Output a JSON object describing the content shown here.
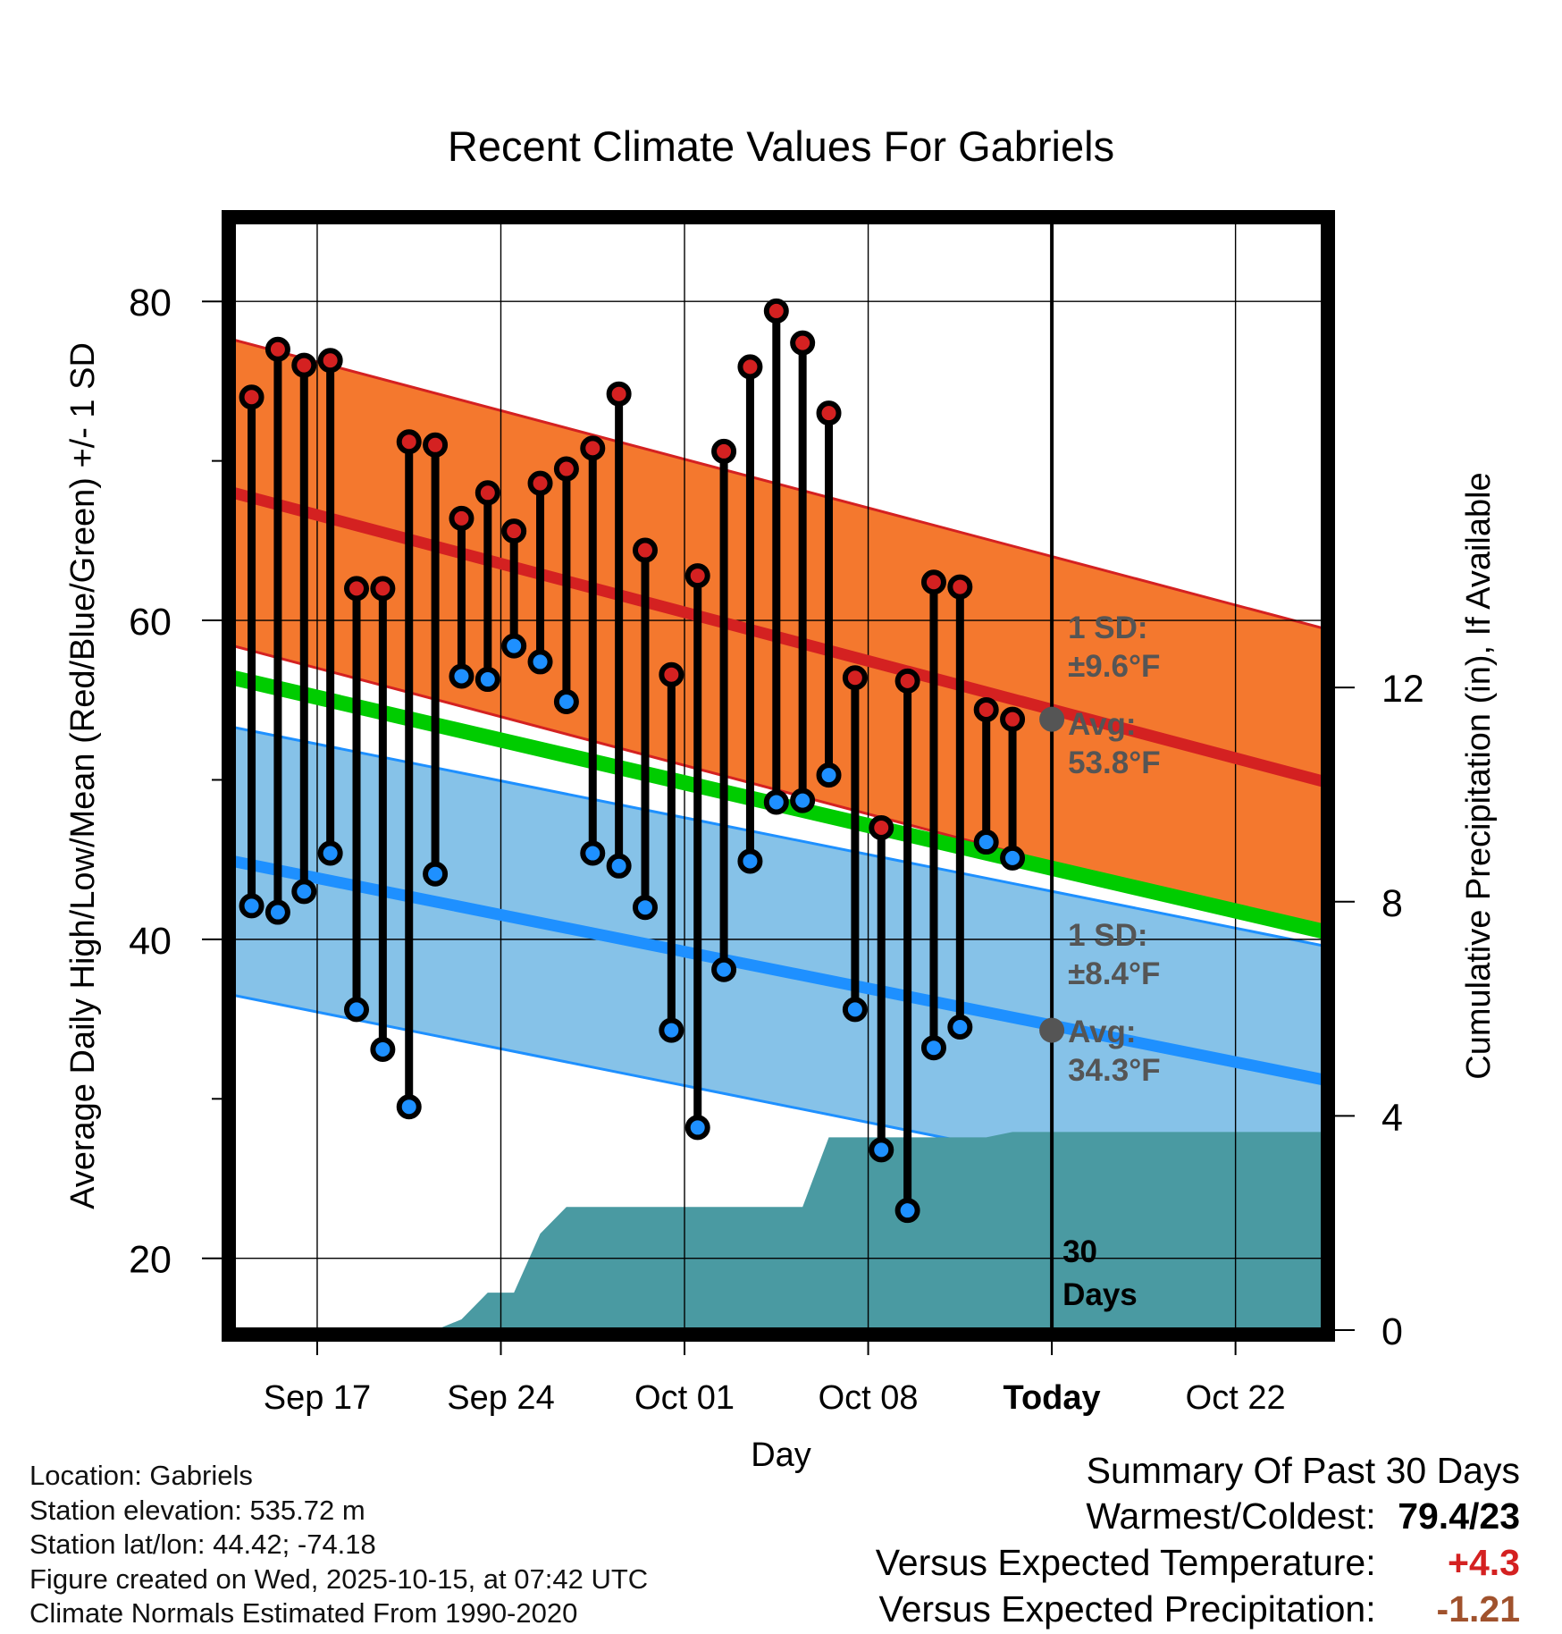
{
  "chart_data": {
    "type": "line",
    "title": "Recent Climate Values For Gabriels",
    "xlabel": "Day",
    "ylabel": "Average Daily High/Low/Mean (Red/Blue/Green) +/- 1 SD",
    "y2label": "Cumulative Precipitation (in), If Available",
    "ylim": [
      15.5,
      85
    ],
    "y2lim": [
      0,
      20.7
    ],
    "xlim": [
      -0.7,
      40.85
    ],
    "x_ticks": [
      {
        "x": 2.5,
        "label": "Sep 17"
      },
      {
        "x": 9.5,
        "label": "Sep 24"
      },
      {
        "x": 16.5,
        "label": "Oct 01"
      },
      {
        "x": 23.5,
        "label": "Oct 08"
      },
      {
        "x": 30.5,
        "label": "Today"
      },
      {
        "x": 37.5,
        "label": "Oct 22"
      }
    ],
    "y_ticks": [
      20,
      40,
      60,
      80
    ],
    "y2_ticks": [
      0,
      4,
      8,
      12
    ],
    "today_x": 30.5,
    "days_label": "30\nDays",
    "series": [
      {
        "name": "High",
        "color": "#d42121",
        "values": [
          74,
          77,
          76,
          76.3,
          62,
          62,
          71.2,
          71,
          66.4,
          68,
          65.6,
          68.6,
          69.5,
          70.8,
          74.2,
          64.4,
          56.6,
          62.8,
          70.6,
          75.9,
          79.4,
          77.4,
          73,
          56.4,
          47,
          56.2,
          62.4,
          62.1,
          54.4,
          53.8
        ]
      },
      {
        "name": "Low",
        "color": "#1e90ff",
        "values": [
          42.1,
          41.7,
          43,
          45.4,
          35.6,
          33.1,
          29.5,
          44.1,
          56.5,
          56.3,
          58.4,
          57.4,
          54.9,
          45.4,
          44.6,
          42,
          34.3,
          28.2,
          38.1,
          44.9,
          48.6,
          48.7,
          50.3,
          35.6,
          26.8,
          23,
          33.2,
          34.5,
          46.1,
          45.1
        ]
      },
      {
        "name": "Normal High",
        "values": [
          68,
          49.9
        ]
      },
      {
        "name": "Normal Low",
        "values": [
          44.9,
          31.2
        ]
      },
      {
        "name": "Normal Mean",
        "values": [
          56.4,
          40.5
        ]
      },
      {
        "name": "Cumulative Precipitation",
        "values": [
          0,
          0,
          0,
          0,
          0,
          0,
          0,
          0,
          0.2,
          0.7,
          0.7,
          1.8,
          2.3,
          2.3,
          2.3,
          2.3,
          2.3,
          2.3,
          2.3,
          2.3,
          2.3,
          2.3,
          3.6,
          3.6,
          3.6,
          3.6,
          3.6,
          3.6,
          3.6,
          3.7,
          3.7,
          3.7,
          3.7,
          3.7,
          3.7,
          3.7,
          3.7,
          3.7,
          3.7,
          3.7,
          3.7,
          3.7
        ]
      }
    ],
    "high_sd": 9.6,
    "low_sd": 8.4,
    "annotations": {
      "high_sd_label": "1 SD:\n±9.6°F",
      "high_avg_label": "Avg:\n53.8°F",
      "low_sd_label": "1 SD:\n±8.4°F",
      "low_avg_label": "Avg:\n34.3°F",
      "high_avg_value": 53.8,
      "low_avg_value": 34.3
    },
    "colors": {
      "high_band": "#f4782e",
      "high_band_edge": "#d42121",
      "high_mean": "#d42121",
      "low_band": "#86c2e8",
      "low_band_edge": "#1e90ff",
      "low_mean": "#1e90ff",
      "mean": "#00cc00",
      "precip": "#4a9aa2",
      "avg_marker": "#555555",
      "annotation_text": "#555555"
    }
  },
  "metadata": {
    "location": "Location: Gabriels",
    "elevation": "Station elevation: 535.72 m",
    "latlon": "Station lat/lon: 44.42; -74.18",
    "created": "Figure created on Wed, 2025-10-15, at 07:42 UTC",
    "normals": "Climate Normals Estimated From 1990-2020"
  },
  "summary": {
    "title": "Summary Of Past 30 Days",
    "warmest_label": "Warmest/Coldest:",
    "warmest_value": "79.4/23",
    "temp_label": "Versus Expected Temperature:",
    "temp_value": "+4.3",
    "temp_color": "#d42121",
    "precip_label": "Versus Expected Precipitation:",
    "precip_value": "-1.21",
    "precip_color": "#a0522d"
  }
}
